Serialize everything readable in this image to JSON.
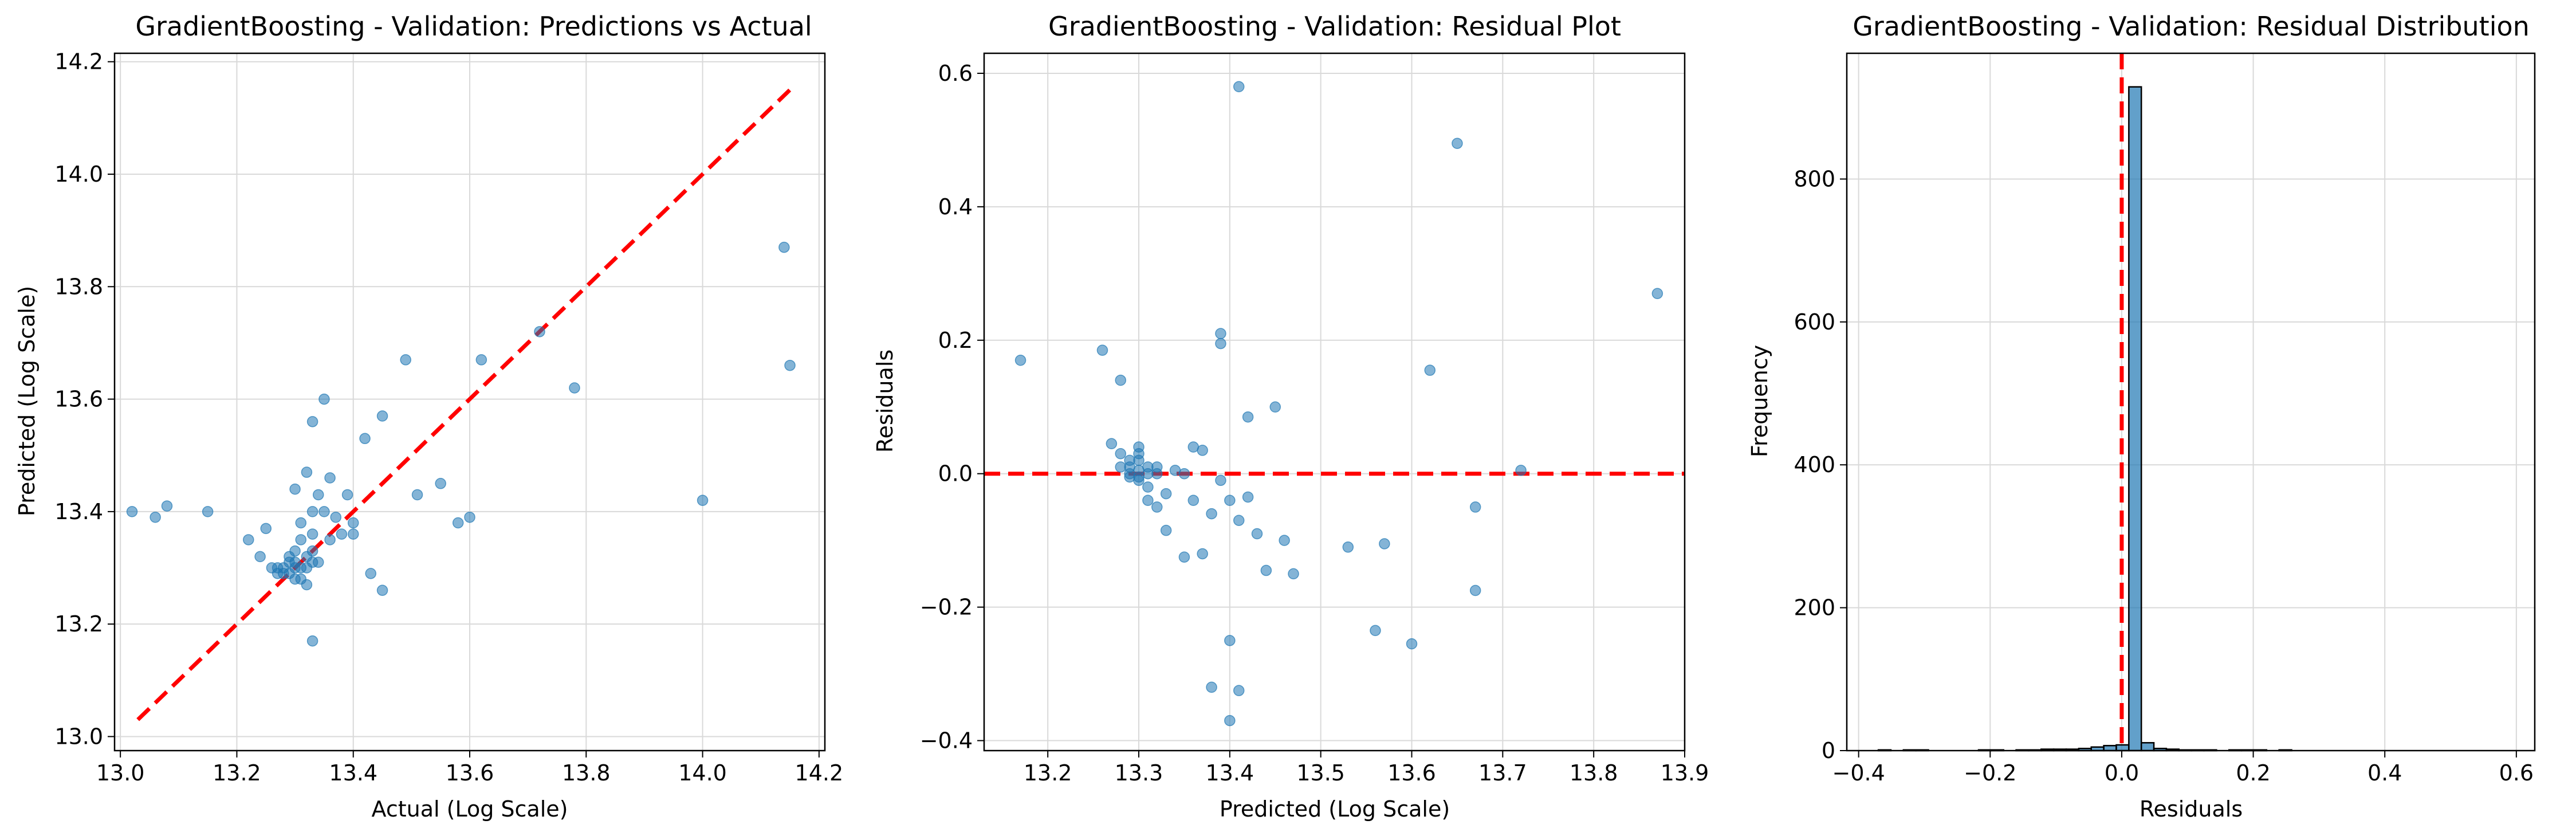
{
  "chart_data": [
    {
      "type": "scatter",
      "title": "GradientBoosting - Validation: Predictions vs Actual",
      "xlabel": "Actual (Log Scale)",
      "ylabel": "Predicted (Log Scale)",
      "xlim": [
        12.99,
        14.21
      ],
      "ylim": [
        12.975,
        14.215
      ],
      "xticks": [
        13.0,
        13.2,
        13.4,
        13.6,
        13.8,
        14.0,
        14.2
      ],
      "xtick_labels": [
        "13.0",
        "13.2",
        "13.4",
        "13.6",
        "13.8",
        "14.0",
        "14.2"
      ],
      "yticks": [
        13.0,
        13.2,
        13.4,
        13.6,
        13.8,
        14.0,
        14.2
      ],
      "ytick_labels": [
        "13.0",
        "13.2",
        "13.4",
        "13.6",
        "13.8",
        "14.0",
        "14.2"
      ],
      "grid": true,
      "point_color": "#1f77b4",
      "reference_line": {
        "from": [
          13.03,
          13.03
        ],
        "to": [
          14.15,
          14.15
        ],
        "color": "#ff0000",
        "style": "dashed"
      },
      "points": [
        [
          13.02,
          13.4
        ],
        [
          13.06,
          13.39
        ],
        [
          13.08,
          13.41
        ],
        [
          13.15,
          13.4
        ],
        [
          13.22,
          13.35
        ],
        [
          13.24,
          13.32
        ],
        [
          13.25,
          13.37
        ],
        [
          13.26,
          13.3
        ],
        [
          13.27,
          13.3
        ],
        [
          13.28,
          13.29
        ],
        [
          13.29,
          13.31
        ],
        [
          13.3,
          13.3
        ],
        [
          13.3,
          13.33
        ],
        [
          13.31,
          13.28
        ],
        [
          13.32,
          13.27
        ],
        [
          13.31,
          13.35
        ],
        [
          13.3,
          13.44
        ],
        [
          13.31,
          13.38
        ],
        [
          13.32,
          13.47
        ],
        [
          13.33,
          13.36
        ],
        [
          13.33,
          13.4
        ],
        [
          13.34,
          13.43
        ],
        [
          13.35,
          13.4
        ],
        [
          13.36,
          13.35
        ],
        [
          13.36,
          13.46
        ],
        [
          13.37,
          13.39
        ],
        [
          13.38,
          13.36
        ],
        [
          13.39,
          13.43
        ],
        [
          13.4,
          13.36
        ],
        [
          13.4,
          13.38
        ],
        [
          13.33,
          13.56
        ],
        [
          13.35,
          13.6
        ],
        [
          13.33,
          13.17
        ],
        [
          13.43,
          13.29
        ],
        [
          13.45,
          13.26
        ],
        [
          13.42,
          13.53
        ],
        [
          13.45,
          13.57
        ],
        [
          13.49,
          13.67
        ],
        [
          13.51,
          13.43
        ],
        [
          13.55,
          13.45
        ],
        [
          13.58,
          13.38
        ],
        [
          13.6,
          13.39
        ],
        [
          13.62,
          13.67
        ],
        [
          13.72,
          13.72
        ],
        [
          13.78,
          13.62
        ],
        [
          14.0,
          13.42
        ],
        [
          14.14,
          13.87
        ],
        [
          14.15,
          13.66
        ],
        [
          13.28,
          13.3
        ],
        [
          13.29,
          13.29
        ],
        [
          13.3,
          13.31
        ],
        [
          13.31,
          13.3
        ],
        [
          13.32,
          13.32
        ],
        [
          13.33,
          13.31
        ],
        [
          13.27,
          13.29
        ],
        [
          13.29,
          13.32
        ],
        [
          13.3,
          13.28
        ],
        [
          13.32,
          13.3
        ],
        [
          13.33,
          13.33
        ],
        [
          13.34,
          13.31
        ]
      ]
    },
    {
      "type": "scatter",
      "title": "GradientBoosting - Validation: Residual Plot",
      "xlabel": "Predicted (Log Scale)",
      "ylabel": "Residuals",
      "xlim": [
        13.13,
        13.9
      ],
      "ylim": [
        -0.415,
        0.63
      ],
      "xticks": [
        13.2,
        13.3,
        13.4,
        13.5,
        13.6,
        13.7,
        13.8,
        13.9
      ],
      "xtick_labels": [
        "13.2",
        "13.3",
        "13.4",
        "13.5",
        "13.6",
        "13.7",
        "13.8",
        "13.9"
      ],
      "yticks": [
        -0.4,
        -0.2,
        0.0,
        0.2,
        0.4,
        0.6
      ],
      "ytick_labels": [
        "−0.4",
        "−0.2",
        "0.0",
        "0.2",
        "0.4",
        "0.6"
      ],
      "grid": true,
      "point_color": "#1f77b4",
      "reference_line": {
        "y": 0.0,
        "color": "#ff0000",
        "style": "dashed"
      },
      "points": [
        [
          13.17,
          0.17
        ],
        [
          13.26,
          0.185
        ],
        [
          13.28,
          0.14
        ],
        [
          13.27,
          0.045
        ],
        [
          13.28,
          0.03
        ],
        [
          13.28,
          0.01
        ],
        [
          13.29,
          0.0
        ],
        [
          13.29,
          -0.005
        ],
        [
          13.3,
          0.02
        ],
        [
          13.3,
          0.005
        ],
        [
          13.3,
          -0.01
        ],
        [
          13.3,
          0.03
        ],
        [
          13.3,
          0.04
        ],
        [
          13.31,
          0.0
        ],
        [
          13.31,
          -0.02
        ],
        [
          13.31,
          -0.04
        ],
        [
          13.32,
          0.01
        ],
        [
          13.32,
          -0.05
        ],
        [
          13.33,
          -0.085
        ],
        [
          13.33,
          -0.03
        ],
        [
          13.34,
          0.005
        ],
        [
          13.35,
          -0.125
        ],
        [
          13.35,
          0.0
        ],
        [
          13.36,
          0.04
        ],
        [
          13.36,
          -0.04
        ],
        [
          13.37,
          0.035
        ],
        [
          13.37,
          -0.12
        ],
        [
          13.38,
          -0.06
        ],
        [
          13.38,
          -0.32
        ],
        [
          13.39,
          0.21
        ],
        [
          13.39,
          0.195
        ],
        [
          13.39,
          -0.01
        ],
        [
          13.4,
          -0.37
        ],
        [
          13.4,
          -0.25
        ],
        [
          13.4,
          -0.04
        ],
        [
          13.41,
          -0.325
        ],
        [
          13.41,
          -0.07
        ],
        [
          13.41,
          0.58
        ],
        [
          13.42,
          0.085
        ],
        [
          13.43,
          -0.09
        ],
        [
          13.42,
          -0.035
        ],
        [
          13.44,
          -0.145
        ],
        [
          13.45,
          0.1
        ],
        [
          13.46,
          -0.1
        ],
        [
          13.47,
          -0.15
        ],
        [
          13.53,
          -0.11
        ],
        [
          13.56,
          -0.235
        ],
        [
          13.57,
          -0.105
        ],
        [
          13.6,
          -0.255
        ],
        [
          13.62,
          0.155
        ],
        [
          13.65,
          0.495
        ],
        [
          13.67,
          -0.05
        ],
        [
          13.67,
          -0.175
        ],
        [
          13.72,
          0.005
        ],
        [
          13.87,
          0.27
        ],
        [
          13.29,
          0.01
        ],
        [
          13.3,
          -0.005
        ],
        [
          13.31,
          0.01
        ],
        [
          13.29,
          0.02
        ],
        [
          13.32,
          0.0
        ]
      ]
    },
    {
      "type": "bar",
      "title": "GradientBoosting - Validation: Residual Distribution",
      "xlabel": "Residuals",
      "ylabel": "Frequency",
      "xlim": [
        -0.418,
        0.628
      ],
      "ylim": [
        0,
        976
      ],
      "xticks": [
        -0.4,
        -0.2,
        0.0,
        0.2,
        0.4,
        0.6
      ],
      "xtick_labels": [
        "−0.4",
        "−0.2",
        "0.0",
        "0.2",
        "0.4",
        "0.6"
      ],
      "yticks": [
        0,
        200,
        400,
        600,
        800
      ],
      "ytick_labels": [
        "0",
        "200",
        "400",
        "600",
        "800"
      ],
      "grid": true,
      "bar_color": "#1f77b4",
      "edge_color": "#000000",
      "reference_line": {
        "x": 0.0,
        "color": "#ff0000",
        "style": "dashed"
      },
      "bin_start": -0.37,
      "bin_width": 0.01904,
      "counts": [
        1,
        0,
        1,
        1,
        0,
        0,
        0,
        0,
        1,
        1,
        0,
        1,
        1,
        2,
        2,
        2,
        3,
        5,
        7,
        8,
        929,
        11,
        3,
        2,
        1,
        1,
        1,
        0,
        1,
        1,
        1,
        0,
        1,
        0,
        0,
        0,
        0,
        0,
        0,
        0,
        0,
        0,
        0,
        0,
        0,
        0,
        0,
        0,
        0,
        0
      ]
    }
  ]
}
